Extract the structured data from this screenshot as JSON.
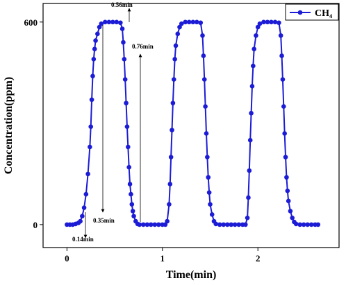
{
  "chart_data": {
    "type": "line",
    "x_label": "Time(min)",
    "y_label": "Concentration(ppm)",
    "annotations": [
      "0.56min",
      "0.76min",
      "0.35min",
      "0.14min"
    ],
    "x": [
      0,
      0.03,
      0.06,
      0.09,
      0.12,
      0.14,
      0.16,
      0.18,
      0.2,
      0.22,
      0.24,
      0.25,
      0.26,
      0.27,
      0.28,
      0.29,
      0.3,
      0.32,
      0.34,
      0.36,
      0.4,
      0.44,
      0.48,
      0.52,
      0.56,
      0.58,
      0.59,
      0.6,
      0.61,
      0.62,
      0.63,
      0.64,
      0.65,
      0.66,
      0.67,
      0.68,
      0.69,
      0.7,
      0.72,
      0.74,
      0.76,
      0.8,
      0.84,
      0.88,
      0.92,
      0.96,
      1.0,
      1.03,
      1.05,
      1.07,
      1.08,
      1.09,
      1.1,
      1.11,
      1.12,
      1.13,
      1.14,
      1.16,
      1.18,
      1.2,
      1.24,
      1.28,
      1.32,
      1.36,
      1.4,
      1.42,
      1.43,
      1.44,
      1.45,
      1.46,
      1.47,
      1.48,
      1.49,
      1.5,
      1.52,
      1.54,
      1.56,
      1.6,
      1.64,
      1.68,
      1.72,
      1.76,
      1.8,
      1.84,
      1.87,
      1.89,
      1.9,
      1.91,
      1.92,
      1.93,
      1.94,
      1.95,
      1.96,
      1.98,
      2.0,
      2.02,
      2.06,
      2.1,
      2.14,
      2.18,
      2.22,
      2.24,
      2.25,
      2.26,
      2.27,
      2.28,
      2.29,
      2.3,
      2.31,
      2.32,
      2.34,
      2.36,
      2.38,
      2.4,
      2.44,
      2.48,
      2.52,
      2.56,
      2.6,
      2.63
    ],
    "series": [
      {
        "name": "CH₄",
        "color": "#1c1cd6",
        "values": [
          0,
          0,
          0,
          2,
          5,
          10,
          25,
          50,
          90,
          150,
          230,
          290,
          370,
          440,
          490,
          520,
          545,
          565,
          585,
          595,
          600,
          600,
          600,
          600,
          598,
          580,
          540,
          490,
          430,
          360,
          290,
          230,
          170,
          120,
          90,
          60,
          40,
          25,
          10,
          2,
          0,
          0,
          0,
          0,
          0,
          0,
          0,
          0,
          10,
          60,
          120,
          200,
          280,
          360,
          430,
          490,
          530,
          565,
          585,
          595,
          600,
          600,
          600,
          600,
          598,
          560,
          500,
          430,
          350,
          270,
          200,
          140,
          95,
          60,
          30,
          10,
          2,
          0,
          0,
          0,
          0,
          0,
          0,
          0,
          0,
          20,
          80,
          160,
          250,
          330,
          410,
          470,
          520,
          560,
          585,
          595,
          600,
          600,
          600,
          600,
          598,
          560,
          500,
          430,
          350,
          270,
          200,
          140,
          100,
          70,
          40,
          20,
          8,
          2,
          0,
          0,
          0,
          0,
          0,
          0
        ]
      }
    ],
    "xlim": [
      -0.25,
      2.85
    ],
    "ylim": [
      -68,
      655
    ],
    "xticks": [
      0,
      1,
      2
    ],
    "yticks": [
      0,
      600
    ],
    "legend": "upper right"
  }
}
